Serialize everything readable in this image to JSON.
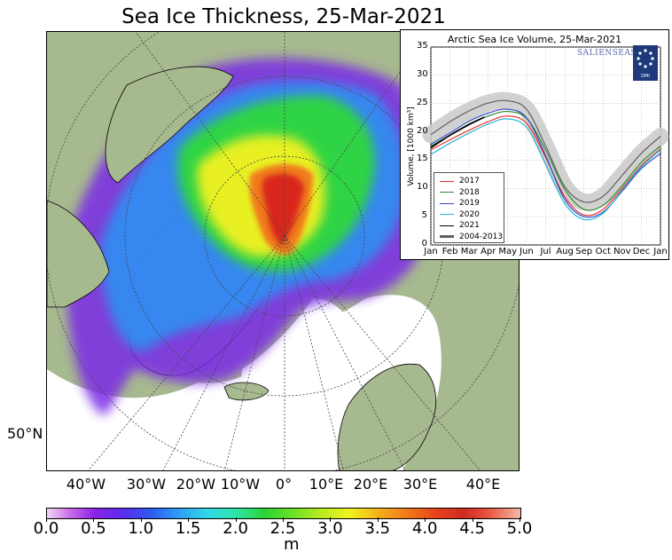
{
  "title": "Sea Ice Thickness, 25-Mar-2021",
  "map": {
    "longitude_labels": [
      "40°W",
      "30°W",
      "20°W",
      "10°W",
      "0°",
      "10°E",
      "20°E",
      "30°E",
      "40°E"
    ],
    "latitude_label": "50°N",
    "colors": {
      "land": "#a7b98f",
      "ocean": "#ffffff",
      "coast": "#000000"
    }
  },
  "colorbar": {
    "ticks": [
      "0.0",
      "0.5",
      "1.0",
      "1.5",
      "2.0",
      "2.5",
      "3.0",
      "3.5",
      "4.0",
      "4.5",
      "5.0"
    ],
    "unit": "m",
    "range": [
      0,
      5
    ]
  },
  "inset": {
    "logo_text": "SALIENSEAS",
    "logo_badge": "DMI",
    "chart_data": {
      "type": "line",
      "title": "Arctic Sea Ice Volume, 25-Mar-2021",
      "ylabel": "Volume, [1000 km³]",
      "xlabel": "",
      "ylim": [
        0,
        35
      ],
      "yticks": [
        "0",
        "5",
        "10",
        "15",
        "20",
        "25",
        "30",
        "35"
      ],
      "categories": [
        "Jan",
        "Feb",
        "Mar",
        "Apr",
        "May",
        "Jun",
        "Jul",
        "Aug",
        "Sep",
        "Oct",
        "Nov",
        "Dec",
        "Jan"
      ],
      "legend_position": "lower-left",
      "grid": true,
      "series": [
        {
          "name": "2017",
          "color": "#e8302a",
          "x": [
            0,
            1,
            2,
            3,
            4,
            5,
            6,
            7,
            8,
            9,
            10,
            11,
            12
          ],
          "values": [
            16.8,
            18.6,
            20.3,
            21.8,
            22.8,
            21.5,
            15.5,
            8.5,
            5.3,
            6.3,
            10.0,
            14.0,
            17.0
          ]
        },
        {
          "name": "2018",
          "color": "#2e8b2e",
          "x": [
            0,
            1,
            2,
            3,
            4,
            5,
            6,
            7,
            8,
            9,
            10,
            11,
            12
          ],
          "values": [
            17.5,
            19.4,
            21.4,
            22.8,
            23.6,
            22.4,
            16.8,
            9.8,
            6.3,
            7.0,
            10.5,
            14.6,
            17.5
          ]
        },
        {
          "name": "2019",
          "color": "#3548c8",
          "x": [
            0,
            1,
            2,
            3,
            4,
            5,
            6,
            7,
            8,
            9,
            10,
            11,
            12
          ],
          "values": [
            17.8,
            19.8,
            21.9,
            23.3,
            24.0,
            22.5,
            15.8,
            8.0,
            5.0,
            5.8,
            9.5,
            13.5,
            16.2
          ]
        },
        {
          "name": "2020",
          "color": "#22b8d8",
          "x": [
            0,
            1,
            2,
            3,
            4,
            5,
            6,
            7,
            8,
            9,
            10,
            11,
            12
          ],
          "values": [
            16.0,
            18.0,
            19.8,
            21.4,
            22.3,
            20.8,
            14.3,
            7.3,
            4.5,
            5.6,
            9.7,
            13.8,
            16.8
          ]
        },
        {
          "name": "2021",
          "color": "#000000",
          "x": [
            0,
            1,
            2,
            2.8
          ],
          "values": [
            17.2,
            19.4,
            21.3,
            22.6
          ]
        },
        {
          "name": "2004-2013",
          "color": "#606060",
          "x": [
            0,
            1,
            2,
            3,
            4,
            5,
            6,
            7,
            8,
            9,
            10,
            11,
            12
          ],
          "values": [
            19.5,
            21.8,
            23.7,
            25.1,
            25.5,
            24.0,
            17.5,
            10.3,
            7.6,
            8.6,
            12.3,
            16.2,
            19.2
          ],
          "band": 1.5
        }
      ]
    }
  }
}
